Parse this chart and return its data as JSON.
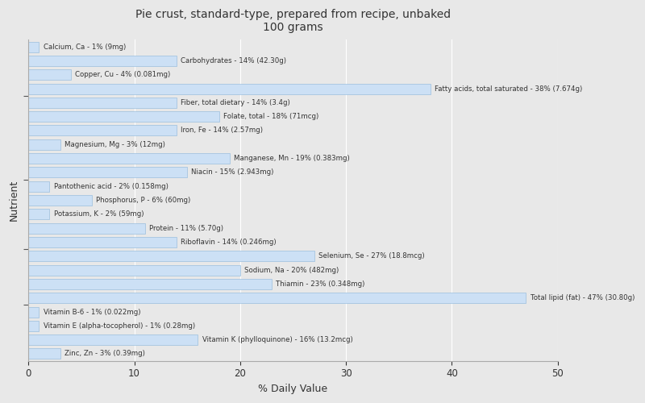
{
  "title": "Pie crust, standard-type, prepared from recipe, unbaked\n100 grams",
  "xlabel": "% Daily Value",
  "ylabel": "Nutrient",
  "xlim": [
    0,
    50
  ],
  "background_color": "#e8e8e8",
  "bar_color": "#cce0f5",
  "bar_edge_color": "#9bbfde",
  "text_color": "#333333",
  "nutrients": [
    {
      "label": "Calcium, Ca - 1% (9mg)",
      "value": 1
    },
    {
      "label": "Carbohydrates - 14% (42.30g)",
      "value": 14
    },
    {
      "label": "Copper, Cu - 4% (0.081mg)",
      "value": 4
    },
    {
      "label": "Fatty acids, total saturated - 38% (7.674g)",
      "value": 38
    },
    {
      "label": "Fiber, total dietary - 14% (3.4g)",
      "value": 14
    },
    {
      "label": "Folate, total - 18% (71mcg)",
      "value": 18
    },
    {
      "label": "Iron, Fe - 14% (2.57mg)",
      "value": 14
    },
    {
      "label": "Magnesium, Mg - 3% (12mg)",
      "value": 3
    },
    {
      "label": "Manganese, Mn - 19% (0.383mg)",
      "value": 19
    },
    {
      "label": "Niacin - 15% (2.943mg)",
      "value": 15
    },
    {
      "label": "Pantothenic acid - 2% (0.158mg)",
      "value": 2
    },
    {
      "label": "Phosphorus, P - 6% (60mg)",
      "value": 6
    },
    {
      "label": "Potassium, K - 2% (59mg)",
      "value": 2
    },
    {
      "label": "Protein - 11% (5.70g)",
      "value": 11
    },
    {
      "label": "Riboflavin - 14% (0.246mg)",
      "value": 14
    },
    {
      "label": "Selenium, Se - 27% (18.8mcg)",
      "value": 27
    },
    {
      "label": "Sodium, Na - 20% (482mg)",
      "value": 20
    },
    {
      "label": "Thiamin - 23% (0.348mg)",
      "value": 23
    },
    {
      "label": "Total lipid (fat) - 47% (30.80g)",
      "value": 47
    },
    {
      "label": "Vitamin B-6 - 1% (0.022mg)",
      "value": 1
    },
    {
      "label": "Vitamin E (alpha-tocopherol) - 1% (0.28mg)",
      "value": 1
    },
    {
      "label": "Vitamin K (phylloquinone) - 16% (13.2mcg)",
      "value": 16
    },
    {
      "label": "Zinc, Zn - 3% (0.39mg)",
      "value": 3
    }
  ],
  "ytick_group_boundaries": [
    3.5,
    7.5,
    12.5,
    18.5
  ],
  "xticks": [
    0,
    10,
    20,
    30,
    40,
    50
  ]
}
